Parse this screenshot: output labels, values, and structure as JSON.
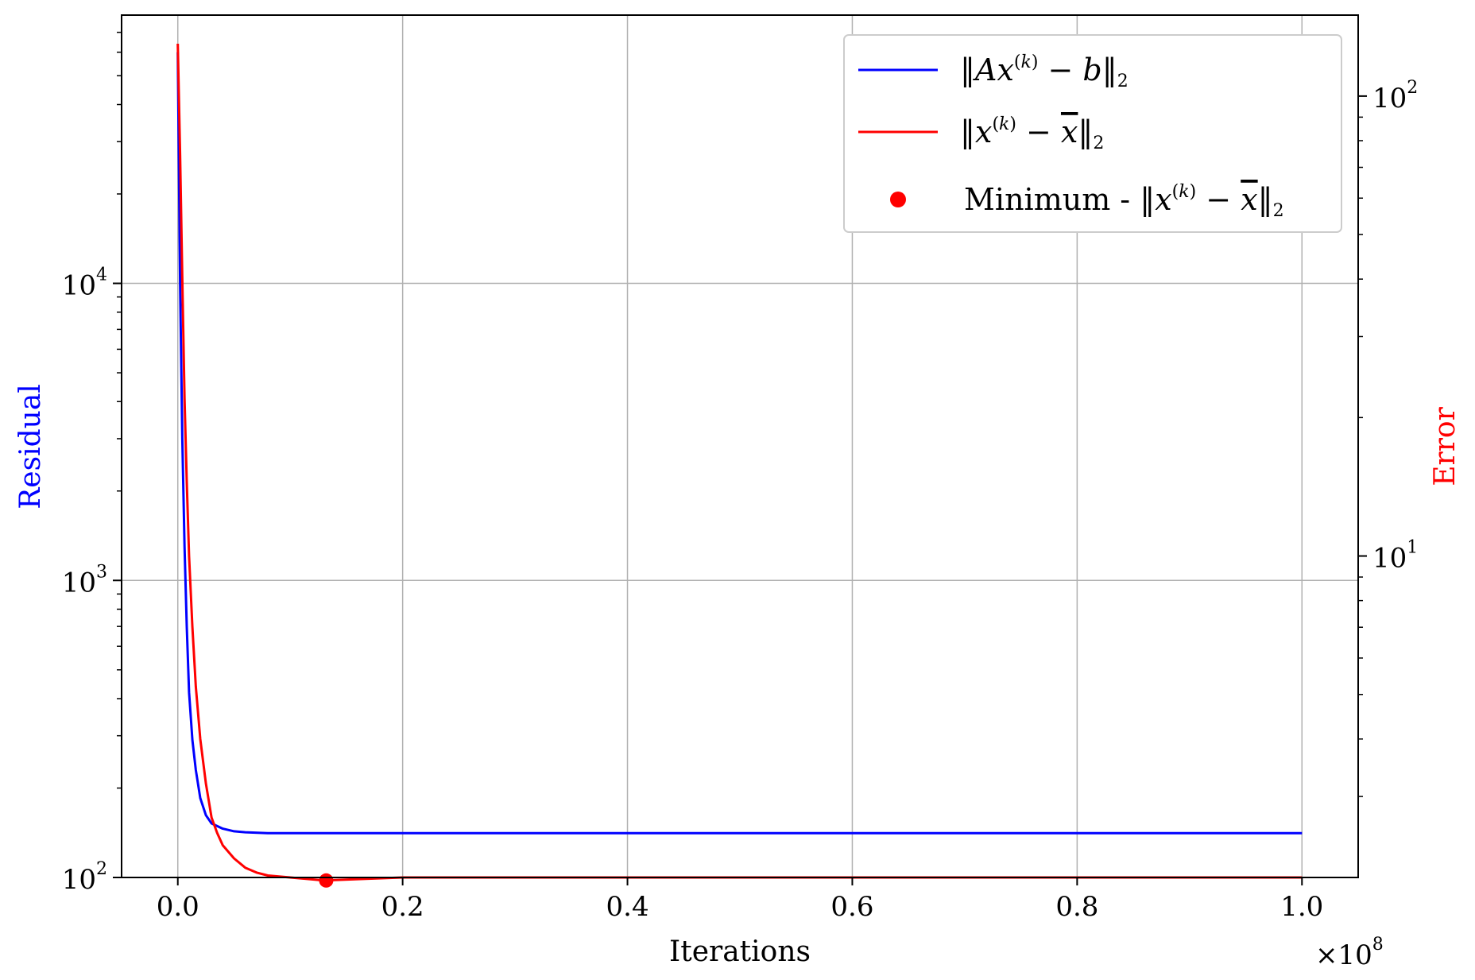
{
  "chart_data": {
    "type": "line",
    "xlabel": "Iterations",
    "x_multiplier": "×10",
    "x_multiplier_exp": "8",
    "ylabel_left": "Residual",
    "ylabel_right": "Error",
    "xlim": [
      -0.05,
      1.05
    ],
    "x_ticks": [
      0.0,
      0.2,
      0.4,
      0.6,
      0.8,
      1.0
    ],
    "x_tick_labels": [
      "0.0",
      "0.2",
      "0.4",
      "0.6",
      "0.8",
      "1.0"
    ],
    "ylim_left": [
      100,
      80000
    ],
    "yscale_left": "log",
    "y_ticks_left": [
      {
        "value": 100,
        "base": "10",
        "exp": "2"
      },
      {
        "value": 1000,
        "base": "10",
        "exp": "3"
      },
      {
        "value": 10000,
        "base": "10",
        "exp": "4"
      }
    ],
    "ylim_right": [
      2.0,
      150
    ],
    "yscale_right": "log",
    "y_ticks_right": [
      {
        "value": 10,
        "base": "10",
        "exp": "1"
      },
      {
        "value": 100,
        "base": "10",
        "exp": "2"
      }
    ],
    "grid": true,
    "legend_position": "top-right",
    "series": [
      {
        "name": "‖Ax(k) − b‖₂",
        "axis": "left",
        "color": "#0000ff",
        "x": [
          0.0,
          0.002,
          0.004,
          0.006,
          0.008,
          0.01,
          0.013,
          0.016,
          0.02,
          0.025,
          0.03,
          0.04,
          0.05,
          0.06,
          0.08,
          0.1,
          0.2,
          0.3,
          0.4,
          0.5,
          0.6,
          0.7,
          0.8,
          0.9,
          1.0
        ],
        "y": [
          60000,
          10000,
          3000,
          1300,
          700,
          420,
          290,
          230,
          185,
          162,
          152,
          146,
          143,
          142,
          141,
          141,
          141,
          141,
          141,
          141,
          141,
          141,
          141,
          141,
          141
        ]
      },
      {
        "name": "‖x(k) − x̄‖₂",
        "axis": "right",
        "color": "#ff0000",
        "x": [
          0.0,
          0.002,
          0.004,
          0.006,
          0.008,
          0.01,
          0.013,
          0.016,
          0.02,
          0.025,
          0.03,
          0.035,
          0.04,
          0.05,
          0.06,
          0.07,
          0.08,
          0.1,
          0.13,
          0.2,
          0.4,
          0.6,
          0.8,
          1.0
        ],
        "y": [
          130,
          75,
          40,
          22,
          14.5,
          10,
          7,
          5.2,
          4.0,
          3.2,
          2.7,
          2.5,
          2.35,
          2.2,
          2.1,
          2.05,
          2.02,
          2.0,
          1.97,
          2.0,
          2.0,
          2.0,
          2.0,
          2.0
        ]
      }
    ],
    "minimum_point": {
      "name": "Minimum - ‖x(k) − x̄‖₂",
      "x": 0.132,
      "y": 1.97,
      "color": "#ff0000"
    }
  }
}
